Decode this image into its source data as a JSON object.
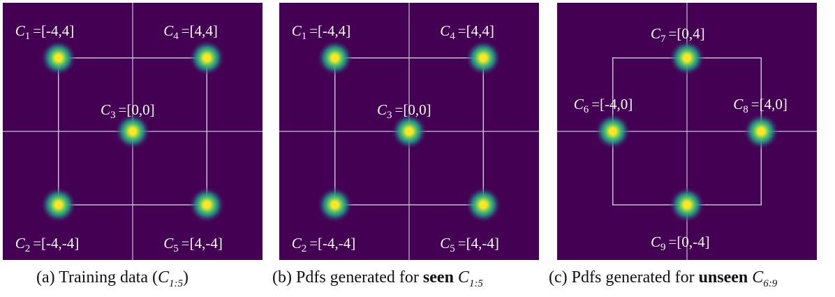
{
  "colors": {
    "background": "#440154",
    "grid": "#c9bfd6",
    "peak_mid": "#21918c",
    "peak_edge": "#5ec962",
    "peak_core": "#fde725",
    "caption_text": "#111111"
  },
  "chart_data": [
    {
      "type": "heatmap",
      "caption": {
        "prefix": "(a) Training data (",
        "emph": "",
        "math_base": "C",
        "math_sub": "1:5",
        "suffix": ")"
      },
      "axis_range": {
        "x": [
          -7,
          7
        ],
        "y": [
          -7,
          7
        ]
      },
      "box": [
        -4,
        4,
        -4,
        4
      ],
      "points": [
        {
          "name_base": "C",
          "name_sub": "1",
          "coord": "=[-4,4]",
          "x": -4,
          "y": 4
        },
        {
          "name_base": "C",
          "name_sub": "4",
          "coord": "=[4,4]",
          "x": 4,
          "y": 4
        },
        {
          "name_base": "C",
          "name_sub": "3",
          "coord": "=[0,0]",
          "x": 0,
          "y": 0
        },
        {
          "name_base": "C",
          "name_sub": "2",
          "coord": "=[-4,-4]",
          "x": -4,
          "y": -4
        },
        {
          "name_base": "C",
          "name_sub": "5",
          "coord": "=[4,-4]",
          "x": 4,
          "y": -4
        }
      ]
    },
    {
      "type": "heatmap",
      "caption": {
        "prefix": "(b) Pdfs generated for ",
        "emph": "seen",
        "math_base": "C",
        "math_sub": "1:5",
        "suffix": ""
      },
      "axis_range": {
        "x": [
          -7,
          7
        ],
        "y": [
          -7,
          7
        ]
      },
      "box": [
        -4,
        4,
        -4,
        4
      ],
      "points": [
        {
          "name_base": "C",
          "name_sub": "1",
          "coord": "=[-4,4]",
          "x": -4,
          "y": 4
        },
        {
          "name_base": "C",
          "name_sub": "4",
          "coord": "=[4,4]",
          "x": 4,
          "y": 4
        },
        {
          "name_base": "C",
          "name_sub": "3",
          "coord": "=[0,0]",
          "x": 0,
          "y": 0
        },
        {
          "name_base": "C",
          "name_sub": "2",
          "coord": "=[-4,-4]",
          "x": -4,
          "y": -4
        },
        {
          "name_base": "C",
          "name_sub": "5",
          "coord": "=[4,-4]",
          "x": 4,
          "y": -4
        }
      ]
    },
    {
      "type": "heatmap",
      "caption": {
        "prefix": "(c) Pdfs generated for ",
        "emph": "unseen",
        "math_base": "C",
        "math_sub": "6:9",
        "suffix": ""
      },
      "axis_range": {
        "x": [
          -7,
          7
        ],
        "y": [
          -7,
          7
        ]
      },
      "box": [
        -4,
        4,
        -4,
        4
      ],
      "points": [
        {
          "name_base": "C",
          "name_sub": "7",
          "coord": "=[0,4]",
          "x": 0,
          "y": 4
        },
        {
          "name_base": "C",
          "name_sub": "6",
          "coord": "=[-4,0]",
          "x": -4,
          "y": 0
        },
        {
          "name_base": "C",
          "name_sub": "8",
          "coord": "=[4,0]",
          "x": 4,
          "y": 0
        },
        {
          "name_base": "C",
          "name_sub": "9",
          "coord": "=[0,-4]",
          "x": 0,
          "y": -4
        }
      ]
    }
  ]
}
